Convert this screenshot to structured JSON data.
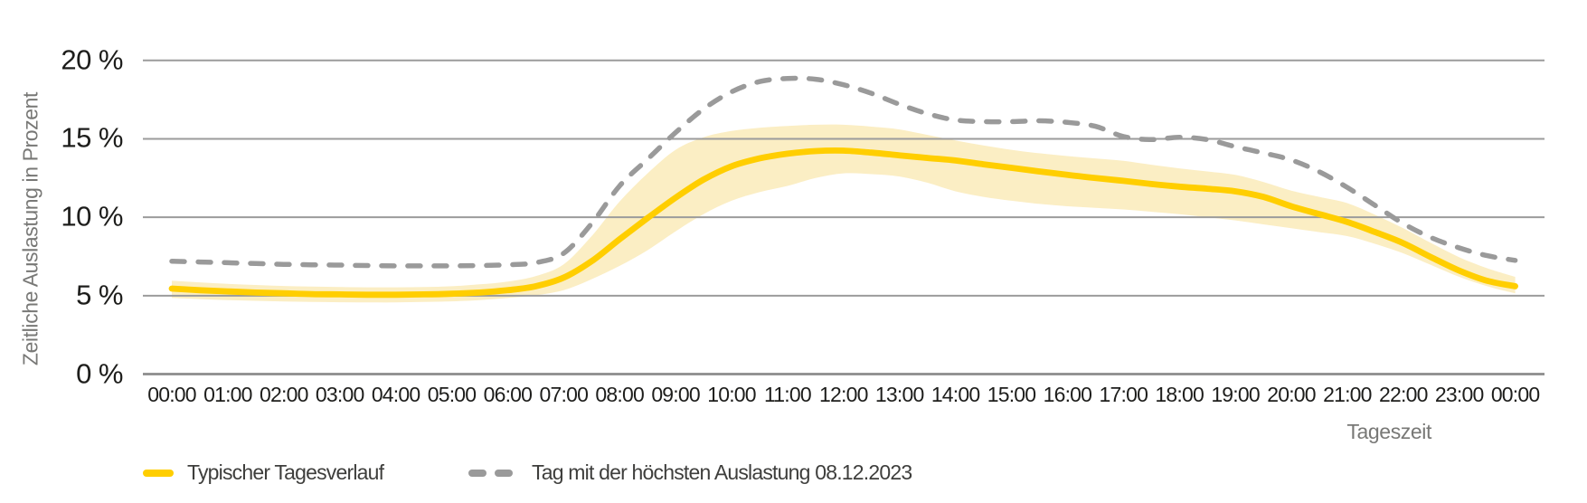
{
  "figure": {
    "y_axis": {
      "title": "Zeitliche Auslastung in Prozent",
      "tick_labels": [
        "20 %",
        "15 %",
        "10 %",
        "5 %",
        "0 %"
      ],
      "tick_values": [
        20,
        15,
        10,
        5,
        0
      ]
    },
    "x_axis": {
      "title": "Tageszeit",
      "tick_labels": [
        "00:00",
        "01:00",
        "02:00",
        "03:00",
        "04:00",
        "05:00",
        "06:00",
        "07:00",
        "08:00",
        "09:00",
        "10:00",
        "11:00",
        "12:00",
        "13:00",
        "14:00",
        "15:00",
        "16:00",
        "17:00",
        "18:00",
        "19:00",
        "20:00",
        "21:00",
        "22:00",
        "23:00",
        "00:00"
      ]
    },
    "colors": {
      "background": "#ffffff",
      "gridline": "#9b9b9b",
      "zero_axis_line": "#8c8c8c",
      "tick_text": "#1d1d1b",
      "axis_title_text": "#787876",
      "legend_text": "#3e3e3c"
    }
  },
  "chart_data": {
    "type": "line",
    "title": "",
    "xlabel": "Tageszeit",
    "ylabel": "Zeitliche Auslastung in Prozent",
    "ylim": [
      0,
      20
    ],
    "yticks": [
      0,
      5,
      10,
      15,
      20
    ],
    "ytick_format": "percent",
    "grid": "horizontal",
    "legend_position": "bottom-left",
    "x_hours": [
      0,
      0.5,
      1,
      1.5,
      2,
      2.5,
      3,
      3.5,
      4,
      4.5,
      5,
      5.5,
      6,
      6.5,
      7,
      7.5,
      8,
      8.5,
      9,
      9.5,
      10,
      10.5,
      11,
      11.5,
      12,
      12.5,
      13,
      13.5,
      14,
      14.5,
      15,
      15.5,
      16,
      16.5,
      17,
      17.5,
      18,
      18.5,
      19,
      19.5,
      20,
      20.5,
      21,
      21.5,
      22,
      22.5,
      23,
      23.5,
      24
    ],
    "series": [
      {
        "name": "Typischer Tagesverlauf",
        "color": "#FFCE00",
        "style": "solid",
        "values": [
          5.45,
          5.35,
          5.27,
          5.2,
          5.15,
          5.1,
          5.08,
          5.06,
          5.06,
          5.08,
          5.12,
          5.2,
          5.35,
          5.6,
          6.15,
          7.2,
          8.6,
          9.95,
          11.25,
          12.4,
          13.25,
          13.75,
          14.05,
          14.22,
          14.25,
          14.12,
          13.95,
          13.78,
          13.62,
          13.38,
          13.15,
          12.92,
          12.7,
          12.5,
          12.32,
          12.12,
          11.95,
          11.82,
          11.65,
          11.3,
          10.7,
          10.2,
          9.7,
          9.05,
          8.35,
          7.45,
          6.6,
          5.95,
          5.6
        ]
      },
      {
        "name": "Tag mit der höchsten Auslastung 08.12.2023",
        "color": "#9A9A9A",
        "style": "dashed",
        "values": [
          7.2,
          7.15,
          7.1,
          7.05,
          7.0,
          6.97,
          6.95,
          6.92,
          6.9,
          6.9,
          6.9,
          6.92,
          6.97,
          7.1,
          7.7,
          9.6,
          12.0,
          13.7,
          15.4,
          16.9,
          18.0,
          18.65,
          18.85,
          18.8,
          18.45,
          17.9,
          17.2,
          16.6,
          16.2,
          16.1,
          16.1,
          16.15,
          16.05,
          15.8,
          15.15,
          14.95,
          15.1,
          14.95,
          14.5,
          14.1,
          13.65,
          12.9,
          11.9,
          10.75,
          9.6,
          8.7,
          8.05,
          7.55,
          7.25
        ]
      }
    ],
    "band": {
      "for_series": "Typischer Tagesverlauf",
      "color": "#FBEEC4",
      "upper": [
        5.95,
        5.85,
        5.75,
        5.68,
        5.62,
        5.58,
        5.55,
        5.53,
        5.53,
        5.55,
        5.6,
        5.72,
        5.9,
        6.25,
        7.0,
        8.8,
        11.0,
        12.8,
        14.3,
        15.1,
        15.5,
        15.7,
        15.82,
        15.9,
        15.9,
        15.78,
        15.6,
        15.25,
        14.9,
        14.58,
        14.3,
        14.08,
        13.9,
        13.75,
        13.6,
        13.35,
        13.12,
        12.92,
        12.7,
        12.25,
        11.7,
        11.3,
        10.9,
        10.15,
        9.3,
        8.35,
        7.45,
        6.75,
        6.2
      ],
      "lower": [
        4.85,
        4.78,
        4.72,
        4.67,
        4.63,
        4.6,
        4.58,
        4.57,
        4.57,
        4.6,
        4.64,
        4.72,
        4.85,
        5.02,
        5.35,
        6.05,
        6.9,
        7.9,
        9.1,
        10.2,
        11.05,
        11.6,
        12.0,
        12.5,
        12.8,
        12.75,
        12.6,
        12.2,
        11.65,
        11.3,
        11.05,
        10.85,
        10.7,
        10.6,
        10.5,
        10.35,
        10.2,
        10.0,
        9.8,
        9.55,
        9.3,
        9.05,
        8.8,
        8.3,
        7.7,
        6.95,
        6.2,
        5.6,
        5.15
      ]
    }
  }
}
